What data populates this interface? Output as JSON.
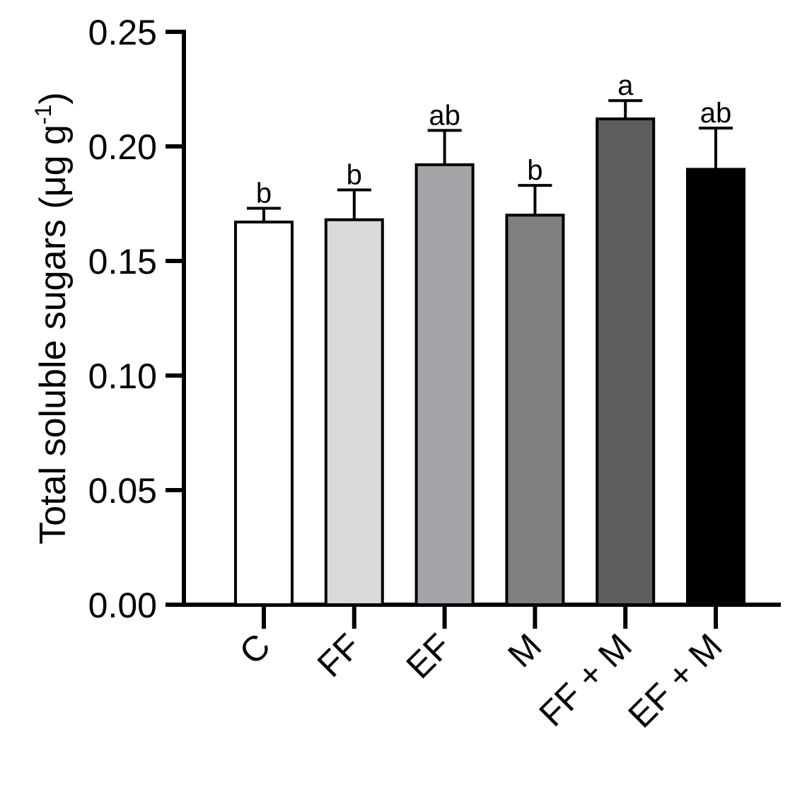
{
  "chart_data": {
    "type": "bar",
    "ylabel": "Total soluble sugars (μg g",
    "ylabel_superscript": "-1",
    "ylabel_close": ")",
    "ylim": [
      0,
      0.25
    ],
    "yticks": [
      "0.00",
      "0.05",
      "0.10",
      "0.15",
      "0.20",
      "0.25"
    ],
    "categories": [
      "C",
      "FF",
      "EF",
      "M",
      "FF + M",
      "EF + M"
    ],
    "values": [
      0.167,
      0.168,
      0.192,
      0.17,
      0.212,
      0.19
    ],
    "errors": [
      0.006,
      0.013,
      0.015,
      0.013,
      0.008,
      0.018
    ],
    "significance_letters": [
      "b",
      "b",
      "ab",
      "b",
      "a",
      "ab"
    ],
    "colors": [
      "#ffffff",
      "#d9d9d9",
      "#a5a5a9",
      "#7f7f7f",
      "#5e5e5e",
      "#000000"
    ],
    "grid": false,
    "legend": "none"
  }
}
